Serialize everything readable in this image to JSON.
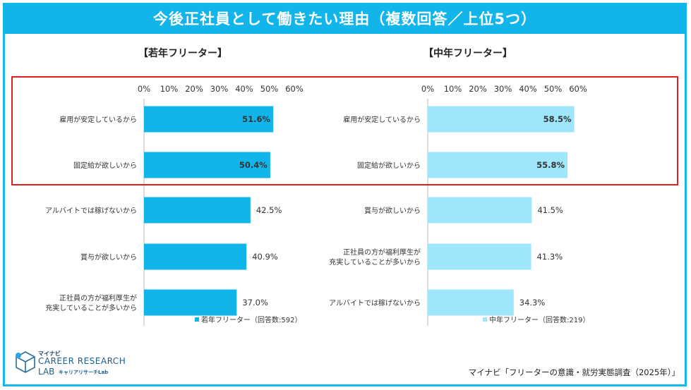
{
  "title": "今後正社員として働きたい理由（複数回答／上位5つ）",
  "source": "マイナビ「フリーターの意識・就労実態調査（2025年）」",
  "logo": {
    "top": "マイナビ",
    "main": "CAREER RESEARCH",
    "sub": "LAB",
    "sub2": "キャリアリサーチLab"
  },
  "colors": {
    "title_bg": "#12b5ea",
    "young_bar": "#12b5ea",
    "middle_bar": "#9fe6fb",
    "highlight": "#e02020"
  },
  "chart_data": [
    {
      "type": "bar",
      "orientation": "horizontal",
      "title": "【若年フリーター】",
      "categories": [
        "雇用が安定しているから",
        "固定給が欲しいから",
        "アルバイトでは稼げないから",
        "賞与が欲しいから",
        "正社員の方が福利厚生が充実していることが多いから"
      ],
      "category_lines": [
        [
          "雇用が安定しているから"
        ],
        [
          "固定給が欲しいから"
        ],
        [
          "アルバイトでは稼げないから"
        ],
        [
          "賞与が欲しいから"
        ],
        [
          "正社員の方が福利厚生が",
          "充実していることが多いから"
        ]
      ],
      "values": [
        51.6,
        50.4,
        42.5,
        40.9,
        37.0
      ],
      "labels": [
        "51.6%",
        "50.4%",
        "42.5%",
        "40.9%",
        "37.0%"
      ],
      "xlim": [
        0,
        60
      ],
      "ticks": [
        "0%",
        "10%",
        "20%",
        "30%",
        "40%",
        "50%",
        "60%"
      ],
      "legend": "若年フリーター（回答数:592）",
      "highlighted": [
        0,
        1
      ]
    },
    {
      "type": "bar",
      "orientation": "horizontal",
      "title": "【中年フリーター】",
      "categories": [
        "雇用が安定しているから",
        "固定給が欲しいから",
        "賞与が欲しいから",
        "正社員の方が福利厚生が充実していることが多いから",
        "アルバイトでは稼げないから"
      ],
      "category_lines": [
        [
          "雇用が安定しているから"
        ],
        [
          "固定給が欲しいから"
        ],
        [
          "賞与が欲しいから"
        ],
        [
          "正社員の方が福利厚生が",
          "充実していることが多いから"
        ],
        [
          "アルバイトでは稼げないから"
        ]
      ],
      "values": [
        58.5,
        55.8,
        41.5,
        41.3,
        34.3
      ],
      "labels": [
        "58.5%",
        "55.8%",
        "41.5%",
        "41.3%",
        "34.3%"
      ],
      "xlim": [
        0,
        60
      ],
      "ticks": [
        "0%",
        "10%",
        "20%",
        "30%",
        "40%",
        "50%",
        "60%"
      ],
      "legend": "中年フリーター（回答数:219）",
      "highlighted": [
        0,
        1
      ]
    }
  ]
}
